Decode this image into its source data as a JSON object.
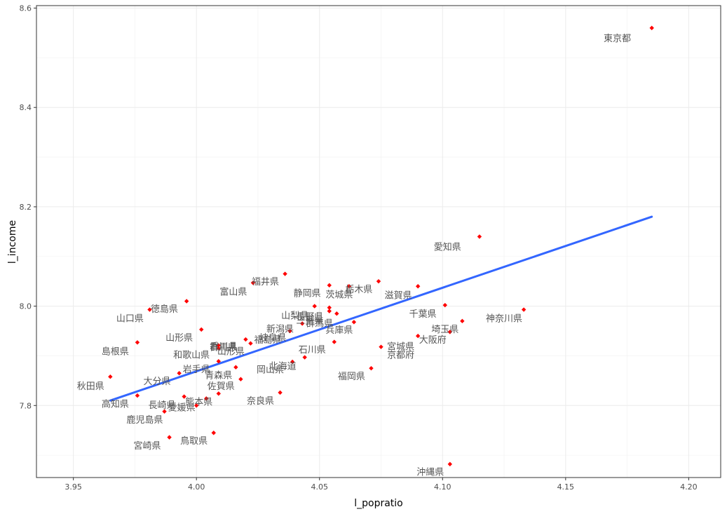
{
  "chart_data": {
    "type": "scatter",
    "xlabel": "l_popratio",
    "ylabel": "l_income",
    "xlim": [
      3.935,
      4.213
    ],
    "ylim": [
      7.655,
      8.605
    ],
    "x_ticks": [
      3.95,
      4.0,
      4.05,
      4.1,
      4.15,
      4.2
    ],
    "x_tick_labels": [
      "3.95",
      "4.00",
      "4.05",
      "4.10",
      "4.15",
      "4.20"
    ],
    "y_ticks": [
      7.8,
      8.0,
      8.2,
      8.4,
      8.6
    ],
    "y_tick_labels": [
      "7.8",
      "8.0",
      "8.2",
      "8.4",
      "8.6"
    ],
    "grid": true,
    "point_color": "#ff0000",
    "line_color": "#3366ff",
    "trend_line": {
      "x": [
        3.965,
        4.185
      ],
      "y": [
        7.81,
        8.18
      ]
    },
    "points": [
      {
        "label": "東京都",
        "x": 4.185,
        "y": 8.56
      },
      {
        "label": "愛知県",
        "x": 4.115,
        "y": 8.14
      },
      {
        "label": "福井県",
        "x": 4.036,
        "y": 8.065
      },
      {
        "label": "富山県",
        "x": 4.023,
        "y": 8.047
      },
      {
        "label": "静岡県",
        "x": 4.054,
        "y": 8.042
      },
      {
        "label": "栃木県",
        "x": 4.074,
        "y": 8.05
      },
      {
        "label": "茨城県",
        "x": 4.062,
        "y": 8.04
      },
      {
        "label": "滋賀県",
        "x": 4.09,
        "y": 8.04
      },
      {
        "label": "徳島県",
        "x": 3.996,
        "y": 8.01
      },
      {
        "label": "山口県",
        "x": 3.981,
        "y": 7.993
      },
      {
        "label": "千葉県",
        "x": 4.101,
        "y": 8.002
      },
      {
        "label": "神奈川県",
        "x": 4.133,
        "y": 7.993
      },
      {
        "label": "山梨県",
        "x": 4.048,
        "y": 8.0
      },
      {
        "label": "長野県",
        "x": 4.054,
        "y": 7.997
      },
      {
        "label": "三重県",
        "x": 4.054,
        "y": 7.99
      },
      {
        "label": "群馬県",
        "x": 4.057,
        "y": 7.985
      },
      {
        "label": "新潟県",
        "x": 4.043,
        "y": 7.965
      },
      {
        "label": "兵庫県",
        "x": 4.064,
        "y": 7.968
      },
      {
        "label": "埼玉県",
        "x": 4.108,
        "y": 7.97
      },
      {
        "label": "大阪府",
        "x": 4.103,
        "y": 7.948
      },
      {
        "label": "山形県",
        "x": 4.002,
        "y": 7.953
      },
      {
        "label": "岐阜県",
        "x": 4.038,
        "y": 7.95
      },
      {
        "label": "福島県",
        "x": 4.02,
        "y": 7.933
      },
      {
        "label": "島根県",
        "x": 3.976,
        "y": 7.927
      },
      {
        "label": "宮城県",
        "x": 4.075,
        "y": 7.918
      },
      {
        "label": "香川県",
        "x": 4.009,
        "y": 7.921
      },
      {
        "label": "群馬県2",
        "x": 4.009,
        "y": 7.915
      },
      {
        "label": "山形県2",
        "x": 4.022,
        "y": 7.925
      },
      {
        "label": "石川県",
        "x": 4.056,
        "y": 7.928
      },
      {
        "label": "京都府",
        "x": 4.09,
        "y": 7.94
      },
      {
        "label": "和歌山県",
        "x": 4.016,
        "y": 7.877
      },
      {
        "label": "北海道",
        "x": 4.044,
        "y": 7.897
      },
      {
        "label": "岡山県",
        "x": 4.039,
        "y": 7.888
      },
      {
        "label": "岩手県",
        "x": 4.009,
        "y": 7.889
      },
      {
        "label": "青森県",
        "x": 4.018,
        "y": 7.853
      },
      {
        "label": "福岡県",
        "x": 4.071,
        "y": 7.875
      },
      {
        "label": "秋田県",
        "x": 3.965,
        "y": 7.858
      },
      {
        "label": "大分県",
        "x": 3.993,
        "y": 7.865
      },
      {
        "label": "佐賀県",
        "x": 4.009,
        "y": 7.824
      },
      {
        "label": "奈良県",
        "x": 4.034,
        "y": 7.826
      },
      {
        "label": "高知県",
        "x": 3.976,
        "y": 7.82
      },
      {
        "label": "長崎県",
        "x": 3.995,
        "y": 7.818
      },
      {
        "label": "熊本県",
        "x": 4.004,
        "y": 7.814
      },
      {
        "label": "愛媛県",
        "x": 4.0,
        "y": 7.8
      },
      {
        "label": "鹿児島県",
        "x": 3.987,
        "y": 7.788
      },
      {
        "label": "宮崎県",
        "x": 3.989,
        "y": 7.736
      },
      {
        "label": "鳥取県",
        "x": 4.007,
        "y": 7.745
      },
      {
        "label": "沖縄県",
        "x": 4.103,
        "y": 7.682
      }
    ],
    "labels": [
      {
        "text": "東京都",
        "x": 4.171,
        "y": 8.54
      },
      {
        "text": "愛知県",
        "x": 4.102,
        "y": 8.12
      },
      {
        "text": "福井県",
        "x": 4.028,
        "y": 8.05
      },
      {
        "text": "富山県",
        "x": 4.015,
        "y": 8.03
      },
      {
        "text": "静岡県",
        "x": 4.045,
        "y": 8.027
      },
      {
        "text": "栃木県",
        "x": 4.066,
        "y": 8.035
      },
      {
        "text": "茨城県",
        "x": 4.058,
        "y": 8.024
      },
      {
        "text": "滋賀県",
        "x": 4.082,
        "y": 8.023
      },
      {
        "text": "徳島県",
        "x": 3.987,
        "y": 7.995
      },
      {
        "text": "山口県",
        "x": 3.973,
        "y": 7.976
      },
      {
        "text": "千葉県",
        "x": 4.092,
        "y": 7.985
      },
      {
        "text": "神奈川県",
        "x": 4.125,
        "y": 7.976
      },
      {
        "text": "山梨県",
        "x": 4.04,
        "y": 7.982
      },
      {
        "text": "長野県",
        "x": 4.046,
        "y": 7.98
      },
      {
        "text": "三重県",
        "x": 4.046,
        "y": 7.972
      },
      {
        "text": "群馬県",
        "x": 4.05,
        "y": 7.966
      },
      {
        "text": "新潟県",
        "x": 4.034,
        "y": 7.955
      },
      {
        "text": "兵庫県",
        "x": 4.058,
        "y": 7.953
      },
      {
        "text": "埼玉県",
        "x": 4.101,
        "y": 7.954
      },
      {
        "text": "大阪府",
        "x": 4.096,
        "y": 7.933
      },
      {
        "text": "山形県",
        "x": 3.993,
        "y": 7.937
      },
      {
        "text": "岐阜県",
        "x": 4.031,
        "y": 7.937
      },
      {
        "text": "福島県",
        "x": 4.029,
        "y": 7.933
      },
      {
        "text": "島根県",
        "x": 3.967,
        "y": 7.91
      },
      {
        "text": "宮城県",
        "x": 4.083,
        "y": 7.92
      },
      {
        "text": "香川県",
        "x": 4.011,
        "y": 7.92
      },
      {
        "text": "群馬県",
        "x": 4.011,
        "y": 7.918
      },
      {
        "text": "山形県",
        "x": 4.014,
        "y": 7.91
      },
      {
        "text": "石川県",
        "x": 4.047,
        "y": 7.913
      },
      {
        "text": "京都府",
        "x": 4.083,
        "y": 7.903
      },
      {
        "text": "和歌山県",
        "x": 3.998,
        "y": 7.903
      },
      {
        "text": "北海道",
        "x": 4.035,
        "y": 7.88
      },
      {
        "text": "岡山県",
        "x": 4.03,
        "y": 7.873
      },
      {
        "text": "岩手県",
        "x": 4.0,
        "y": 7.874
      },
      {
        "text": "青森県",
        "x": 4.009,
        "y": 7.862
      },
      {
        "text": "福岡県",
        "x": 4.063,
        "y": 7.86
      },
      {
        "text": "秋田県",
        "x": 3.957,
        "y": 7.84
      },
      {
        "text": "大分県",
        "x": 3.984,
        "y": 7.85
      },
      {
        "text": "佐賀県",
        "x": 4.01,
        "y": 7.84
      },
      {
        "text": "奈良県",
        "x": 4.026,
        "y": 7.81
      },
      {
        "text": "高知県",
        "x": 3.967,
        "y": 7.804
      },
      {
        "text": "長崎県",
        "x": 3.986,
        "y": 7.802
      },
      {
        "text": "熊本県",
        "x": 4.001,
        "y": 7.808
      },
      {
        "text": "愛媛県",
        "x": 3.994,
        "y": 7.797
      },
      {
        "text": "鹿児島県",
        "x": 3.979,
        "y": 7.772
      },
      {
        "text": "宮崎県",
        "x": 3.98,
        "y": 7.72
      },
      {
        "text": "鳥取県",
        "x": 3.999,
        "y": 7.73
      },
      {
        "text": "沖縄県",
        "x": 4.095,
        "y": 7.667
      }
    ]
  }
}
